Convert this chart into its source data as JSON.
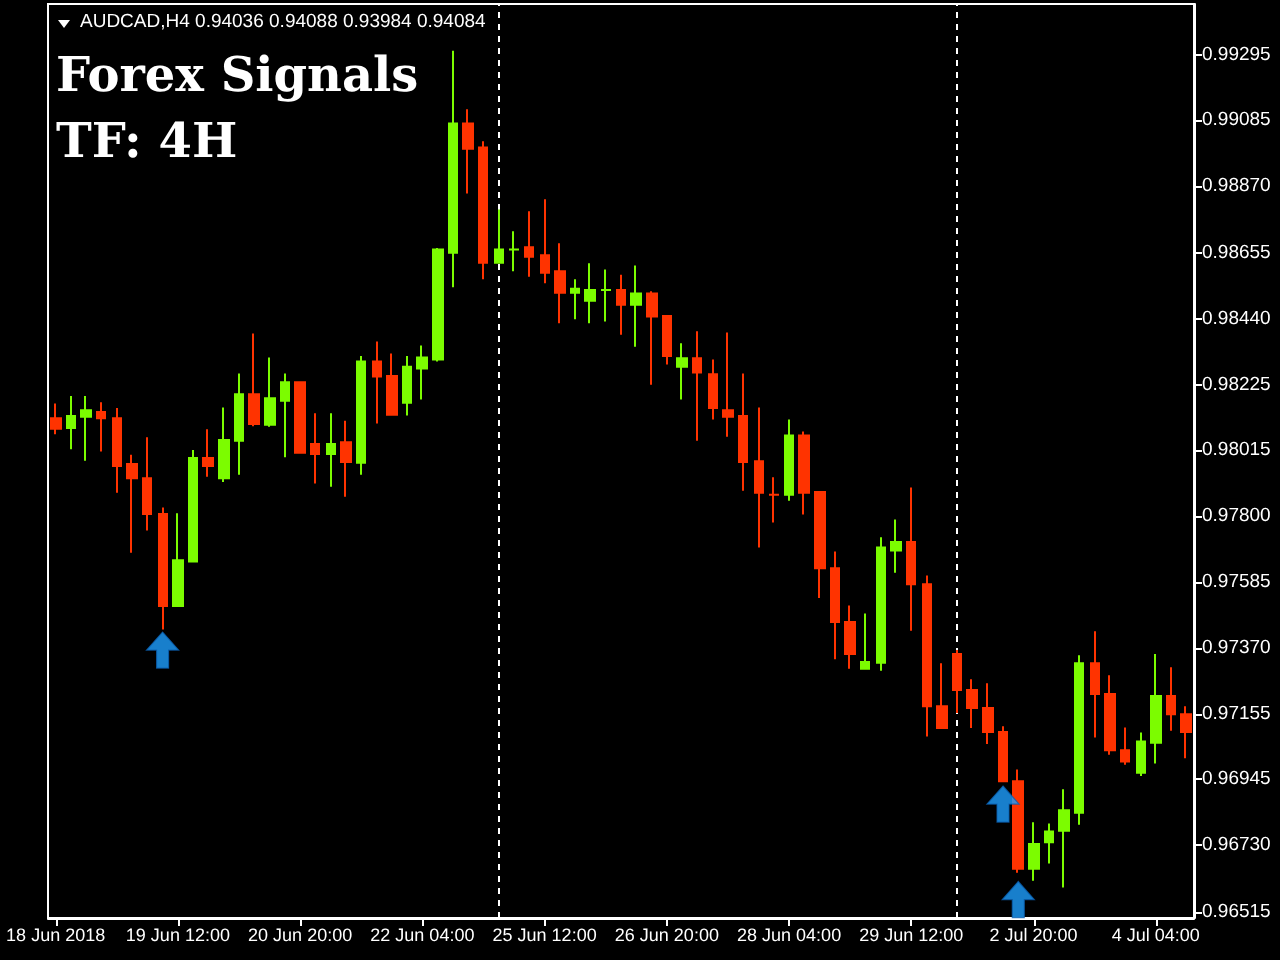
{
  "chart_data": {
    "type": "candlestick",
    "title": "AUDCAD,H4 0.94036 0.94088 0.93984 0.94084",
    "subtitle": "Forex Signals",
    "annotations": [
      "TF: 4H"
    ],
    "categories": [
      "18 Jun 2018",
      null,
      null,
      null,
      null,
      null,
      null,
      null,
      "19 Jun 12:00",
      null,
      null,
      null,
      null,
      null,
      null,
      null,
      "20 Jun 20:00",
      null,
      null,
      null,
      null,
      null,
      null,
      null,
      "22 Jun 04:00",
      null,
      null,
      null,
      null,
      null,
      null,
      null,
      "25 Jun 12:00",
      null,
      null,
      null,
      null,
      null,
      null,
      null,
      "26 Jun 20:00",
      null,
      null,
      null,
      null,
      null,
      null,
      null,
      "28 Jun 04:00",
      null,
      null,
      null,
      null,
      null,
      null,
      null,
      "29 Jun 12:00",
      null,
      null,
      null,
      null,
      null,
      null,
      null,
      "2 Jul 20:00",
      null,
      null,
      null,
      null,
      null,
      null,
      null,
      "4 Jul 04:00",
      null,
      null
    ],
    "ohlc": [
      [
        0.98117,
        0.98165,
        0.98065,
        0.98083
      ],
      [
        0.98085,
        0.98189,
        0.98016,
        0.98124
      ],
      [
        0.98122,
        0.98189,
        0.97979,
        0.98143
      ],
      [
        0.98137,
        0.98169,
        0.98009,
        0.98117
      ],
      [
        0.98117,
        0.9815,
        0.97875,
        0.97962
      ],
      [
        0.97968,
        0.97998,
        0.9768,
        0.97922
      ],
      [
        0.97922,
        0.98055,
        0.97752,
        0.97806
      ],
      [
        0.97806,
        0.97827,
        0.97431,
        0.97507
      ],
      [
        0.97507,
        0.97808,
        0.97507,
        0.97656
      ],
      [
        0.97652,
        0.98014,
        0.97648,
        0.97988
      ],
      [
        0.97988,
        0.98081,
        0.97927,
        0.97962
      ],
      [
        0.97922,
        0.98152,
        0.9791,
        0.98046
      ],
      [
        0.98044,
        0.98262,
        0.97933,
        0.98195
      ],
      [
        0.98195,
        0.98392,
        0.98091,
        0.98098
      ],
      [
        0.98096,
        0.98314,
        0.98089,
        0.98182
      ],
      [
        0.98174,
        0.98262,
        0.9799,
        0.98234
      ],
      [
        0.98234,
        0.98234,
        0.98005,
        0.98005
      ],
      [
        0.98033,
        0.98133,
        0.97905,
        0.98001
      ],
      [
        0.98001,
        0.98133,
        0.97894,
        0.98033
      ],
      [
        0.98039,
        0.98109,
        0.97862,
        0.97975
      ],
      [
        0.97972,
        0.98319,
        0.97933,
        0.98301
      ],
      [
        0.98301,
        0.98366,
        0.981,
        0.98252
      ],
      [
        0.98254,
        0.98327,
        0.98128,
        0.98128
      ],
      [
        0.98167,
        0.98319,
        0.98126,
        0.98284
      ],
      [
        0.98278,
        0.98353,
        0.98178,
        0.98314
      ],
      [
        0.98308,
        0.9867,
        0.98301,
        0.98665
      ],
      [
        0.98654,
        0.9931,
        0.98542,
        0.99074
      ],
      [
        0.99074,
        0.9912,
        0.98847,
        0.98992
      ],
      [
        0.98996,
        0.99016,
        0.98568,
        0.98622
      ],
      [
        0.98622,
        0.98795,
        0.98622,
        0.98665
      ],
      [
        0.98665,
        0.98724,
        0.98594,
        0.98665
      ],
      [
        0.98672,
        0.98789,
        0.98576,
        0.98641
      ],
      [
        0.98646,
        0.98828,
        0.98555,
        0.98589
      ],
      [
        0.98594,
        0.98685,
        0.98425,
        0.98524
      ],
      [
        0.98524,
        0.98568,
        0.98438,
        0.98537
      ],
      [
        0.98498,
        0.9862,
        0.98425,
        0.98533
      ],
      [
        0.98533,
        0.986,
        0.98431,
        0.98533
      ],
      [
        0.98533,
        0.98583,
        0.98388,
        0.98485
      ],
      [
        0.98485,
        0.98613,
        0.98349,
        0.98522
      ],
      [
        0.98522,
        0.98529,
        0.98226,
        0.98447
      ],
      [
        0.98449,
        0.98449,
        0.98291,
        0.98319
      ],
      [
        0.98284,
        0.9836,
        0.98178,
        0.98312
      ],
      [
        0.98312,
        0.98399,
        0.98044,
        0.98265
      ],
      [
        0.9826,
        0.98308,
        0.98113,
        0.9815
      ],
      [
        0.98143,
        0.98395,
        0.98057,
        0.98122
      ],
      [
        0.98124,
        0.98262,
        0.97881,
        0.97975
      ],
      [
        0.97977,
        0.98152,
        0.97697,
        0.97875
      ],
      [
        0.97868,
        0.97925,
        0.97778,
        0.97868
      ],
      [
        0.97868,
        0.98113,
        0.97849,
        0.98061
      ],
      [
        0.98061,
        0.98074,
        0.97804,
        0.97875
      ],
      [
        0.97877,
        0.97877,
        0.97533,
        0.9763
      ],
      [
        0.9763,
        0.97684,
        0.97334,
        0.97455
      ],
      [
        0.97455,
        0.97509,
        0.97303,
        0.97351
      ],
      [
        0.97303,
        0.97483,
        0.97303,
        0.97325
      ],
      [
        0.97323,
        0.9773,
        0.97297,
        0.97697
      ],
      [
        0.97687,
        0.97788,
        0.97615,
        0.97715
      ],
      [
        0.97715,
        0.97892,
        0.97427,
        0.97578
      ],
      [
        0.97578,
        0.97606,
        0.97083,
        0.97182
      ],
      [
        0.97182,
        0.97321,
        0.97111,
        0.97111
      ],
      [
        0.97351,
        0.97364,
        0.9716,
        0.97234
      ],
      [
        0.97234,
        0.97269,
        0.97111,
        0.97176
      ],
      [
        0.97176,
        0.97256,
        0.97059,
        0.97098
      ],
      [
        0.97098,
        0.97117,
        0.96938,
        0.96938
      ],
      [
        0.96938,
        0.96976,
        0.96641,
        0.96654
      ],
      [
        0.96654,
        0.96805,
        0.96615,
        0.96734
      ],
      [
        0.9674,
        0.96801,
        0.96671,
        0.96775
      ],
      [
        0.96777,
        0.96912,
        0.96593,
        0.96844
      ],
      [
        0.96836,
        0.97347,
        0.96797,
        0.97321
      ],
      [
        0.97321,
        0.97425,
        0.9708,
        0.97221
      ],
      [
        0.97221,
        0.97282,
        0.97024,
        0.97039
      ],
      [
        0.97039,
        0.97113,
        0.96992,
        0.97002
      ],
      [
        0.96966,
        0.97096,
        0.96955,
        0.97067
      ],
      [
        0.97063,
        0.97351,
        0.96996,
        0.97215
      ],
      [
        0.97215,
        0.97308,
        0.97102,
        0.97156
      ],
      [
        0.97156,
        0.97182,
        0.97013,
        0.97098
      ]
    ],
    "colors": [
      "#ff3300",
      "#7cfc00",
      "#7cfc00",
      "#ff3300",
      "#ff3300",
      "#ff3300",
      "#ff3300",
      "#ff3300",
      "#7cfc00",
      "#7cfc00",
      "#ff3300",
      "#7cfc00",
      "#7cfc00",
      "#ff3300",
      "#7cfc00",
      "#7cfc00",
      "#ff3300",
      "#ff3300",
      "#7cfc00",
      "#ff3300",
      "#7cfc00",
      "#ff3300",
      "#ff3300",
      "#7cfc00",
      "#7cfc00",
      "#7cfc00",
      "#7cfc00",
      "#ff3300",
      "#ff3300",
      "#7cfc00",
      "#7cfc00",
      "#ff3300",
      "#ff3300",
      "#ff3300",
      "#7cfc00",
      "#7cfc00",
      "#7cfc00",
      "#ff3300",
      "#7cfc00",
      "#ff3300",
      "#ff3300",
      "#7cfc00",
      "#ff3300",
      "#ff3300",
      "#ff3300",
      "#ff3300",
      "#ff3300",
      "#ff3300",
      "#7cfc00",
      "#ff3300",
      "#ff3300",
      "#ff3300",
      "#ff3300",
      "#7cfc00",
      "#7cfc00",
      "#7cfc00",
      "#ff3300",
      "#ff3300",
      "#ff3300",
      "#ff3300",
      "#ff3300",
      "#ff3300",
      "#ff3300",
      "#ff3300",
      "#7cfc00",
      "#7cfc00",
      "#7cfc00",
      "#7cfc00",
      "#ff3300",
      "#ff3300",
      "#ff3300",
      "#7cfc00",
      "#7cfc00",
      "#ff3300",
      "#ff3300"
    ],
    "series": [
      {
        "type": "scatter",
        "color": "#1e9fff",
        "marker": "triangle",
        "values": [
          null,
          null,
          null,
          null,
          null,
          null,
          null,
          0.97364,
          null,
          null,
          null,
          null,
          null,
          null,
          null,
          null,
          null,
          null,
          null,
          null,
          null,
          null,
          null,
          null,
          null,
          null,
          null,
          null,
          null,
          null,
          null,
          null,
          null,
          null,
          null,
          null,
          null,
          null,
          null,
          null,
          null,
          null,
          null,
          null,
          null,
          null,
          null,
          null,
          null,
          null,
          null,
          null,
          null,
          null,
          null,
          null,
          null,
          null,
          null,
          null,
          null,
          null,
          0.96864,
          0.96554,
          null,
          null,
          null,
          null,
          null,
          null,
          null,
          null,
          null,
          null,
          null
        ]
      }
    ],
    "ylim": [
      0.96494,
      0.99462
    ],
    "yticks": [
      0.99295,
      0.99085,
      {
        "value": 0.9887,
        "label": "0.98870"
      },
      0.98655,
      {
        "value": 0.9844,
        "label": "0.98440"
      },
      0.98225,
      0.98015,
      {
        "value": 0.978,
        "label": "0.97800"
      },
      0.97585,
      {
        "value": 0.9737,
        "label": "0.97370"
      },
      0.97155,
      0.96945,
      {
        "value": 0.9673,
        "label": "0.96730"
      },
      0.96515
    ]
  }
}
